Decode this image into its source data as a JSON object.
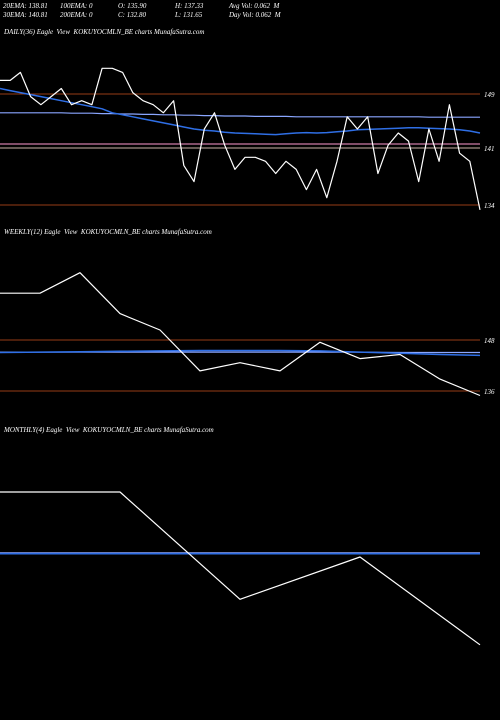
{
  "stats": {
    "row1": [
      "20EMA: 138.81",
      "100EMA: 0",
      "O: 135.90",
      "H: 137.33",
      "Avg Vol: 0.062  M"
    ],
    "row2": [
      "30EMA: 140.81",
      "200EMA: 0",
      "C: 132.80",
      "L: 131.65",
      "Day Vol: 0.062  M"
    ]
  },
  "colors": {
    "price": "#ffffff",
    "ema_fast": "#2f6fe6",
    "ema_slow": "#8aa6ff",
    "level_line": "#c8501e",
    "pink_line": "#ff9ad0",
    "background": "#000000"
  },
  "chart_data": [
    {
      "type": "line",
      "title": "DAILY(36) Eagle  View  KOKUYOCMLN_BE charts MunafaSutra.com",
      "ticks": [
        "149",
        "141",
        "134"
      ],
      "series": [
        {
          "key": "price",
          "values": [
            150,
            150,
            152,
            146,
            144,
            146,
            148,
            144,
            145,
            144,
            153,
            153,
            152,
            147,
            145,
            144,
            142,
            145,
            129,
            125,
            138,
            142,
            134,
            128,
            131,
            131,
            130,
            127,
            130,
            128,
            123,
            128,
            121,
            130,
            141,
            138,
            141,
            127,
            134,
            137,
            135,
            125,
            138,
            130,
            144,
            132,
            130,
            118
          ]
        },
        {
          "key": "ema_fast",
          "values": [
            148,
            147.5,
            147,
            146.5,
            146,
            145.5,
            145,
            144.5,
            144,
            143.5,
            143,
            142,
            141.5,
            141,
            140.5,
            140,
            139.5,
            139,
            138.5,
            138,
            137.7,
            137.5,
            137.2,
            137,
            136.9,
            136.8,
            136.7,
            136.6,
            136.8,
            137,
            137.1,
            137,
            137.1,
            137.3,
            137.5,
            137.8,
            137.9,
            138,
            138.1,
            138.2,
            138.3,
            138.3,
            138.2,
            138.1,
            138,
            137.8,
            137.5,
            137
          ]
        },
        {
          "key": "ema_slow",
          "values": [
            142,
            142,
            142,
            142,
            142,
            142,
            142,
            141.9,
            141.9,
            141.9,
            141.8,
            141.8,
            141.7,
            141.7,
            141.6,
            141.6,
            141.5,
            141.5,
            141.4,
            141.4,
            141.3,
            141.3,
            141.2,
            141.2,
            141.2,
            141.1,
            141.1,
            141.1,
            141.1,
            141,
            141,
            141,
            141,
            141,
            141,
            141,
            141,
            141,
            141,
            141,
            141,
            141,
            140.9,
            140.9,
            140.9,
            140.9,
            140.9,
            140.9
          ]
        }
      ]
    },
    {
      "type": "line",
      "title": "WEEKLY(12) Eagle  View  KOKUYOCMLN_BE charts MunafaSutra.com",
      "ticks": [
        "148",
        "136"
      ],
      "series": [
        {
          "key": "price",
          "values": [
            155,
            155,
            160,
            150,
            146,
            136,
            138,
            136,
            143,
            139,
            140,
            134,
            130
          ]
        },
        {
          "key": "ema_fast",
          "values": [
            140.5,
            140.6,
            140.7,
            140.8,
            140.9,
            141,
            141,
            141,
            140.9,
            140.6,
            140.3,
            140,
            139.8
          ]
        },
        {
          "key": "ema_slow",
          "values": [
            140.6,
            140.6,
            140.6,
            140.6,
            140.6,
            140.6,
            140.6,
            140.6,
            140.6,
            140.6,
            140.5,
            140.5,
            140.5
          ]
        }
      ]
    },
    {
      "type": "line",
      "title": "MONTHLY(4) Eagle  View  KOKUYOCMLN_BE charts MunafaSutra.com",
      "ticks": [],
      "series": [
        {
          "key": "price",
          "values": [
            160,
            160,
            127,
            140,
            113
          ]
        },
        {
          "key": "ema_fast",
          "values": [
            141,
            141,
            141,
            141,
            141
          ]
        },
        {
          "key": "ema_slow",
          "values": [
            141.3,
            141.3,
            141.3,
            141.3,
            141.3
          ]
        }
      ]
    }
  ]
}
